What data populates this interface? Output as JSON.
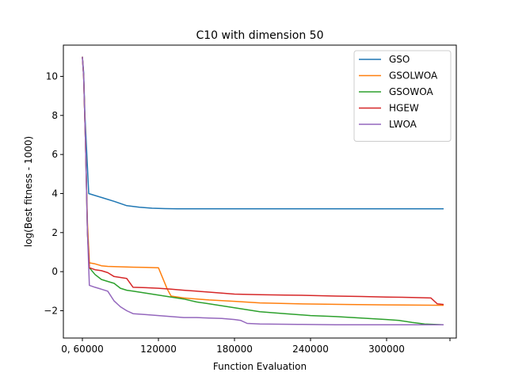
{
  "chart_data": {
    "type": "line",
    "title": "C10 with dimension 50",
    "xlabel": "Function Evaluation",
    "ylabel": "log(Best fitness - 1000)",
    "xlim": [
      45000,
      355000
    ],
    "ylim": [
      -3.4,
      11.6
    ],
    "x_ticks": [
      {
        "value": 60000,
        "label": "0, 60000"
      },
      {
        "value": 120000,
        "label": "120000"
      },
      {
        "value": 180000,
        "label": "180000"
      },
      {
        "value": 240000,
        "label": "240000"
      },
      {
        "value": 300000,
        "label": "300000"
      },
      {
        "value": 350000,
        "label": ""
      }
    ],
    "y_ticks": [
      {
        "value": -2,
        "label": "−2"
      },
      {
        "value": 0,
        "label": "0"
      },
      {
        "value": 2,
        "label": "2"
      },
      {
        "value": 4,
        "label": "4"
      },
      {
        "value": 6,
        "label": "6"
      },
      {
        "value": 8,
        "label": "8"
      },
      {
        "value": 10,
        "label": "10"
      }
    ],
    "grid": false,
    "legend": "top-right",
    "series": [
      {
        "name": "GSO",
        "color": "#1f77b4",
        "x": [
          60000,
          61000,
          62000,
          63500,
          65000,
          75000,
          85000,
          95000,
          105000,
          115000,
          125000,
          135000,
          145000,
          200000,
          250000,
          300000,
          345000
        ],
        "y": [
          11.0,
          10.2,
          8.0,
          6.0,
          4.0,
          3.8,
          3.6,
          3.38,
          3.3,
          3.25,
          3.23,
          3.22,
          3.22,
          3.22,
          3.22,
          3.22,
          3.22
        ]
      },
      {
        "name": "GSOLWOA",
        "color": "#ff7f0e",
        "x": [
          60000,
          61000,
          62500,
          64000,
          65500,
          70000,
          75000,
          80000,
          90000,
          100000,
          110000,
          120000,
          127000,
          130000,
          140000,
          160000,
          180000,
          200000,
          230000,
          270000,
          300000,
          345000
        ],
        "y": [
          11.0,
          10.0,
          6.5,
          2.5,
          0.45,
          0.4,
          0.3,
          0.27,
          0.25,
          0.23,
          0.22,
          0.2,
          -0.9,
          -1.25,
          -1.35,
          -1.45,
          -1.52,
          -1.6,
          -1.65,
          -1.68,
          -1.7,
          -1.72
        ]
      },
      {
        "name": "GSOWOA",
        "color": "#2ca02c",
        "x": [
          60000,
          61000,
          62500,
          64000,
          65500,
          70000,
          75000,
          80000,
          85000,
          90000,
          95000,
          100000,
          110000,
          120000,
          130000,
          140000,
          150000,
          160000,
          170000,
          180000,
          190000,
          200000,
          220000,
          240000,
          260000,
          280000,
          300000,
          310000,
          320000,
          330000,
          345000
        ],
        "y": [
          11.0,
          10.0,
          6.5,
          2.0,
          0.2,
          -0.15,
          -0.4,
          -0.5,
          -0.6,
          -0.85,
          -0.95,
          -1.0,
          -1.1,
          -1.2,
          -1.3,
          -1.4,
          -1.55,
          -1.65,
          -1.75,
          -1.85,
          -1.95,
          -2.05,
          -2.15,
          -2.25,
          -2.3,
          -2.38,
          -2.45,
          -2.5,
          -2.6,
          -2.68,
          -2.72
        ]
      },
      {
        "name": "HGEW",
        "color": "#d62728",
        "x": [
          60000,
          61000,
          62500,
          64000,
          65500,
          70000,
          75000,
          80000,
          85000,
          90000,
          95000,
          100000,
          110000,
          120000,
          130000,
          140000,
          150000,
          160000,
          170000,
          180000,
          200000,
          220000,
          240000,
          260000,
          280000,
          300000,
          320000,
          335000,
          340000,
          345000
        ],
        "y": [
          11.0,
          10.0,
          6.5,
          2.0,
          0.2,
          0.1,
          0.05,
          -0.05,
          -0.25,
          -0.3,
          -0.35,
          -0.8,
          -0.82,
          -0.85,
          -0.9,
          -0.95,
          -1.0,
          -1.05,
          -1.1,
          -1.15,
          -1.18,
          -1.2,
          -1.22,
          -1.25,
          -1.27,
          -1.3,
          -1.32,
          -1.35,
          -1.65,
          -1.68
        ]
      },
      {
        "name": "LWOA",
        "color": "#9467bd",
        "x": [
          60000,
          61000,
          62500,
          64000,
          65500,
          70000,
          75000,
          80000,
          85000,
          90000,
          95000,
          100000,
          110000,
          120000,
          130000,
          140000,
          150000,
          160000,
          170000,
          180000,
          185000,
          190000,
          200000,
          230000,
          260000,
          300000,
          345000
        ],
        "y": [
          11.0,
          10.0,
          6.5,
          2.0,
          -0.7,
          -0.8,
          -0.9,
          -1.0,
          -1.5,
          -1.8,
          -2.0,
          -2.15,
          -2.2,
          -2.25,
          -2.3,
          -2.35,
          -2.35,
          -2.38,
          -2.4,
          -2.45,
          -2.5,
          -2.65,
          -2.68,
          -2.7,
          -2.72,
          -2.72,
          -2.72
        ]
      }
    ]
  }
}
